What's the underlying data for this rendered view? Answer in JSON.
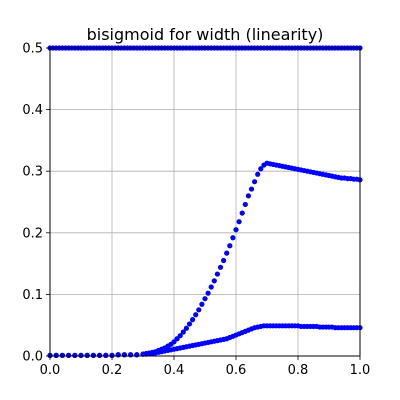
{
  "chart_data": {
    "type": "scatter",
    "title": "bisigmoid for width (linearity)",
    "xlabel": "",
    "ylabel": "",
    "xlim": [
      0.0,
      1.0
    ],
    "ylim": [
      0.0,
      0.5
    ],
    "x_ticks": [
      "0.0",
      "0.2",
      "0.4",
      "0.6",
      "0.8",
      "1.0"
    ],
    "y_ticks": [
      "0.0",
      "0.1",
      "0.2",
      "0.3",
      "0.4",
      "0.5"
    ],
    "grid": true,
    "legend": "none",
    "marker_color": "#0000ff",
    "series": [
      {
        "x": [
          0.0,
          0.01,
          0.02,
          0.03,
          0.04,
          0.05,
          0.06,
          0.07,
          0.08,
          0.09,
          0.1,
          0.11,
          0.12,
          0.13,
          0.14,
          0.15,
          0.16,
          0.17,
          0.18,
          0.19,
          0.2,
          0.21,
          0.22,
          0.23,
          0.24,
          0.25,
          0.26,
          0.27,
          0.28,
          0.29,
          0.3,
          0.31,
          0.32,
          0.33,
          0.34,
          0.35,
          0.36,
          0.37,
          0.38,
          0.39,
          0.4,
          0.41,
          0.42,
          0.43,
          0.44,
          0.45,
          0.46,
          0.47,
          0.48,
          0.49,
          0.5,
          0.51,
          0.52,
          0.53,
          0.54,
          0.55,
          0.56,
          0.57,
          0.58,
          0.59,
          0.6,
          0.61,
          0.62,
          0.63,
          0.64,
          0.65,
          0.66,
          0.67,
          0.68,
          0.69,
          0.7,
          0.71,
          0.72,
          0.73,
          0.74,
          0.75,
          0.76,
          0.77,
          0.78,
          0.79,
          0.8,
          0.81,
          0.82,
          0.83,
          0.84,
          0.85,
          0.86,
          0.87,
          0.88,
          0.89,
          0.9,
          0.91,
          0.92,
          0.93,
          0.94,
          0.95,
          0.96,
          0.97,
          0.98,
          0.99,
          1.0
        ],
        "y": [
          0.5,
          0.5,
          0.5,
          0.5,
          0.5,
          0.5,
          0.5,
          0.5,
          0.5,
          0.5,
          0.5,
          0.5,
          0.5,
          0.5,
          0.5,
          0.5,
          0.5,
          0.5,
          0.5,
          0.5,
          0.5,
          0.5,
          0.5,
          0.5,
          0.5,
          0.5,
          0.5,
          0.5,
          0.5,
          0.5,
          0.5,
          0.5,
          0.5,
          0.5,
          0.5,
          0.5,
          0.5,
          0.5,
          0.5,
          0.5,
          0.5,
          0.5,
          0.5,
          0.5,
          0.5,
          0.5,
          0.5,
          0.5,
          0.5,
          0.5,
          0.5,
          0.5,
          0.5,
          0.5,
          0.5,
          0.5,
          0.5,
          0.5,
          0.5,
          0.5,
          0.5,
          0.5,
          0.5,
          0.5,
          0.5,
          0.5,
          0.5,
          0.5,
          0.5,
          0.5,
          0.5,
          0.5,
          0.5,
          0.5,
          0.5,
          0.5,
          0.5,
          0.5,
          0.5,
          0.5,
          0.5,
          0.5,
          0.5,
          0.5,
          0.5,
          0.5,
          0.5,
          0.5,
          0.5,
          0.5,
          0.5,
          0.5,
          0.5,
          0.5,
          0.5,
          0.5,
          0.5,
          0.5,
          0.5,
          0.5,
          0.5
        ]
      },
      {
        "x": [
          0.0,
          0.02,
          0.04,
          0.06,
          0.08,
          0.1,
          0.12,
          0.14,
          0.16,
          0.18,
          0.2,
          0.22,
          0.24,
          0.26,
          0.28,
          0.3,
          0.31,
          0.32,
          0.33,
          0.34,
          0.35,
          0.36,
          0.37,
          0.38,
          0.39,
          0.4,
          0.41,
          0.42,
          0.43,
          0.44,
          0.45,
          0.46,
          0.47,
          0.48,
          0.49,
          0.5,
          0.51,
          0.52,
          0.53,
          0.54,
          0.55,
          0.56,
          0.57,
          0.58,
          0.59,
          0.6,
          0.61,
          0.62,
          0.63,
          0.64,
          0.65,
          0.66,
          0.67,
          0.68,
          0.69,
          0.7,
          0.71,
          0.72,
          0.73,
          0.74,
          0.75,
          0.76,
          0.77,
          0.78,
          0.79,
          0.8,
          0.81,
          0.82,
          0.83,
          0.84,
          0.85,
          0.86,
          0.87,
          0.88,
          0.89,
          0.9,
          0.91,
          0.92,
          0.93,
          0.94,
          0.95,
          0.96,
          0.97,
          0.98,
          0.99,
          1.0
        ],
        "y": [
          0.001,
          0.001,
          0.001,
          0.001,
          0.001,
          0.001,
          0.001,
          0.001,
          0.001,
          0.001,
          0.001,
          0.002,
          0.002,
          0.002,
          0.002,
          0.003,
          0.004,
          0.005,
          0.006,
          0.007,
          0.009,
          0.011,
          0.013,
          0.016,
          0.019,
          0.023,
          0.028,
          0.033,
          0.039,
          0.045,
          0.052,
          0.059,
          0.067,
          0.075,
          0.084,
          0.093,
          0.102,
          0.112,
          0.122,
          0.133,
          0.144,
          0.155,
          0.167,
          0.179,
          0.192,
          0.205,
          0.218,
          0.232,
          0.246,
          0.26,
          0.271,
          0.283,
          0.295,
          0.304,
          0.31,
          0.313,
          0.312,
          0.311,
          0.31,
          0.309,
          0.308,
          0.307,
          0.306,
          0.305,
          0.304,
          0.303,
          0.302,
          0.301,
          0.3,
          0.299,
          0.298,
          0.297,
          0.296,
          0.295,
          0.294,
          0.293,
          0.292,
          0.291,
          0.29,
          0.289,
          0.289,
          0.288,
          0.288,
          0.287,
          0.287,
          0.286
        ]
      },
      {
        "x": [
          0.0,
          0.02,
          0.04,
          0.06,
          0.08,
          0.1,
          0.12,
          0.14,
          0.16,
          0.18,
          0.2,
          0.22,
          0.24,
          0.26,
          0.28,
          0.3,
          0.31,
          0.32,
          0.33,
          0.34,
          0.35,
          0.36,
          0.37,
          0.38,
          0.39,
          0.4,
          0.41,
          0.42,
          0.43,
          0.44,
          0.45,
          0.46,
          0.47,
          0.48,
          0.49,
          0.5,
          0.51,
          0.52,
          0.53,
          0.54,
          0.55,
          0.56,
          0.57,
          0.58,
          0.59,
          0.6,
          0.61,
          0.62,
          0.63,
          0.64,
          0.65,
          0.66,
          0.67,
          0.68,
          0.69,
          0.7,
          0.71,
          0.72,
          0.73,
          0.74,
          0.75,
          0.76,
          0.77,
          0.78,
          0.79,
          0.8,
          0.81,
          0.82,
          0.83,
          0.84,
          0.85,
          0.86,
          0.87,
          0.88,
          0.89,
          0.9,
          0.91,
          0.92,
          0.93,
          0.94,
          0.95,
          0.96,
          0.97,
          0.98,
          0.99,
          1.0
        ],
        "y": [
          0.001,
          0.001,
          0.001,
          0.001,
          0.001,
          0.001,
          0.001,
          0.001,
          0.001,
          0.001,
          0.001,
          0.002,
          0.002,
          0.002,
          0.002,
          0.003,
          0.003,
          0.004,
          0.004,
          0.005,
          0.006,
          0.007,
          0.008,
          0.009,
          0.01,
          0.011,
          0.012,
          0.013,
          0.014,
          0.015,
          0.016,
          0.017,
          0.018,
          0.019,
          0.02,
          0.021,
          0.022,
          0.023,
          0.024,
          0.025,
          0.026,
          0.027,
          0.028,
          0.03,
          0.032,
          0.034,
          0.036,
          0.038,
          0.04,
          0.042,
          0.044,
          0.046,
          0.047,
          0.048,
          0.049,
          0.049,
          0.049,
          0.049,
          0.049,
          0.049,
          0.049,
          0.049,
          0.049,
          0.049,
          0.049,
          0.049,
          0.048,
          0.048,
          0.048,
          0.048,
          0.048,
          0.048,
          0.047,
          0.047,
          0.047,
          0.047,
          0.047,
          0.046,
          0.046,
          0.046,
          0.046,
          0.046,
          0.046,
          0.046,
          0.046,
          0.046
        ]
      }
    ]
  }
}
